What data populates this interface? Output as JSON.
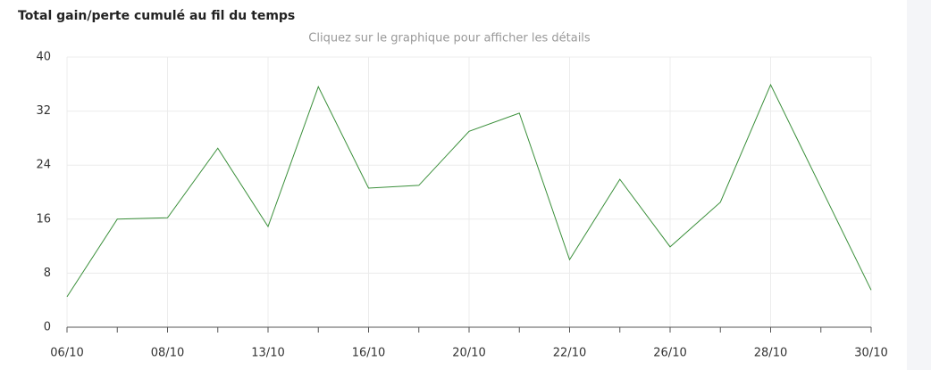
{
  "chart_data": {
    "type": "line",
    "title": "Total gain/perte cumulé au fil du temps",
    "subtitle": "Cliquez sur le graphique pour afficher les détails",
    "categories": [
      "06/10",
      null,
      "08/10",
      null,
      "13/10",
      null,
      "16/10",
      null,
      "20/10",
      null,
      "22/10",
      null,
      "26/10",
      null,
      "28/10",
      null,
      "30/10"
    ],
    "values": [
      4.5,
      16.0,
      16.2,
      26.5,
      14.9,
      35.6,
      20.6,
      21.0,
      29.0,
      31.7,
      10.0,
      21.9,
      11.9,
      18.5,
      35.9,
      20.7,
      5.5
    ],
    "color": "#3a8f3a",
    "ylim": [
      0,
      40
    ],
    "yticks": [
      0,
      8,
      16,
      24,
      32,
      40
    ],
    "grid": true
  }
}
